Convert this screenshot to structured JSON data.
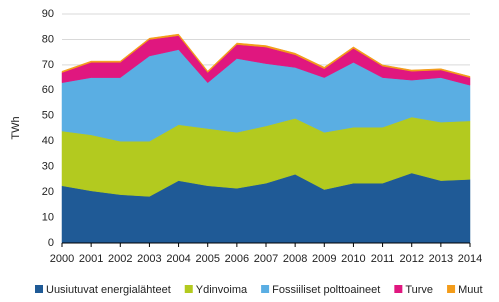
{
  "chart_data": {
    "type": "stacked-area",
    "y_label": "TWh",
    "categories": [
      "2000",
      "2001",
      "2002",
      "2003",
      "2004",
      "2005",
      "2006",
      "2007",
      "2008",
      "2009",
      "2010",
      "2011",
      "2012",
      "2013",
      "2014"
    ],
    "series": [
      {
        "name": "Uusiutuvat energialähteet",
        "color": "#1f5a96",
        "values": [
          22.5,
          20.5,
          19,
          18.3,
          24.5,
          22.5,
          21.5,
          23.5,
          27,
          21,
          23.5,
          23.5,
          27.5,
          24.5,
          25
        ]
      },
      {
        "name": "Ydinvoima",
        "color": "#b3ca1f",
        "values": [
          21.5,
          22,
          21,
          21.7,
          22,
          22.5,
          22,
          22.5,
          22,
          22.5,
          22,
          22,
          22,
          23,
          23
        ]
      },
      {
        "name": "Fossiiliset polttoaineet",
        "color": "#5aaee3",
        "values": [
          19,
          22.5,
          25,
          33.5,
          29.5,
          18,
          29,
          24.5,
          20,
          21.5,
          25.5,
          19.5,
          14.5,
          17.5,
          14
        ]
      },
      {
        "name": "Turve",
        "color": "#e0177f",
        "values": [
          4,
          6,
          6,
          6.5,
          5.5,
          4,
          5.5,
          6.5,
          5,
          3.5,
          5.5,
          4.5,
          3.5,
          3,
          3
        ]
      },
      {
        "name": "Muut",
        "color": "#f39c1a",
        "values": [
          0.5,
          0.5,
          0.5,
          0.5,
          0.6,
          0.6,
          0.6,
          0.6,
          0.6,
          0.6,
          0.6,
          0.5,
          0.5,
          0.5,
          0.5
        ]
      }
    ],
    "ylim": [
      0,
      90
    ],
    "yticks": [
      0,
      10,
      20,
      30,
      40,
      50,
      60,
      70,
      80,
      90
    ],
    "grid": true
  }
}
